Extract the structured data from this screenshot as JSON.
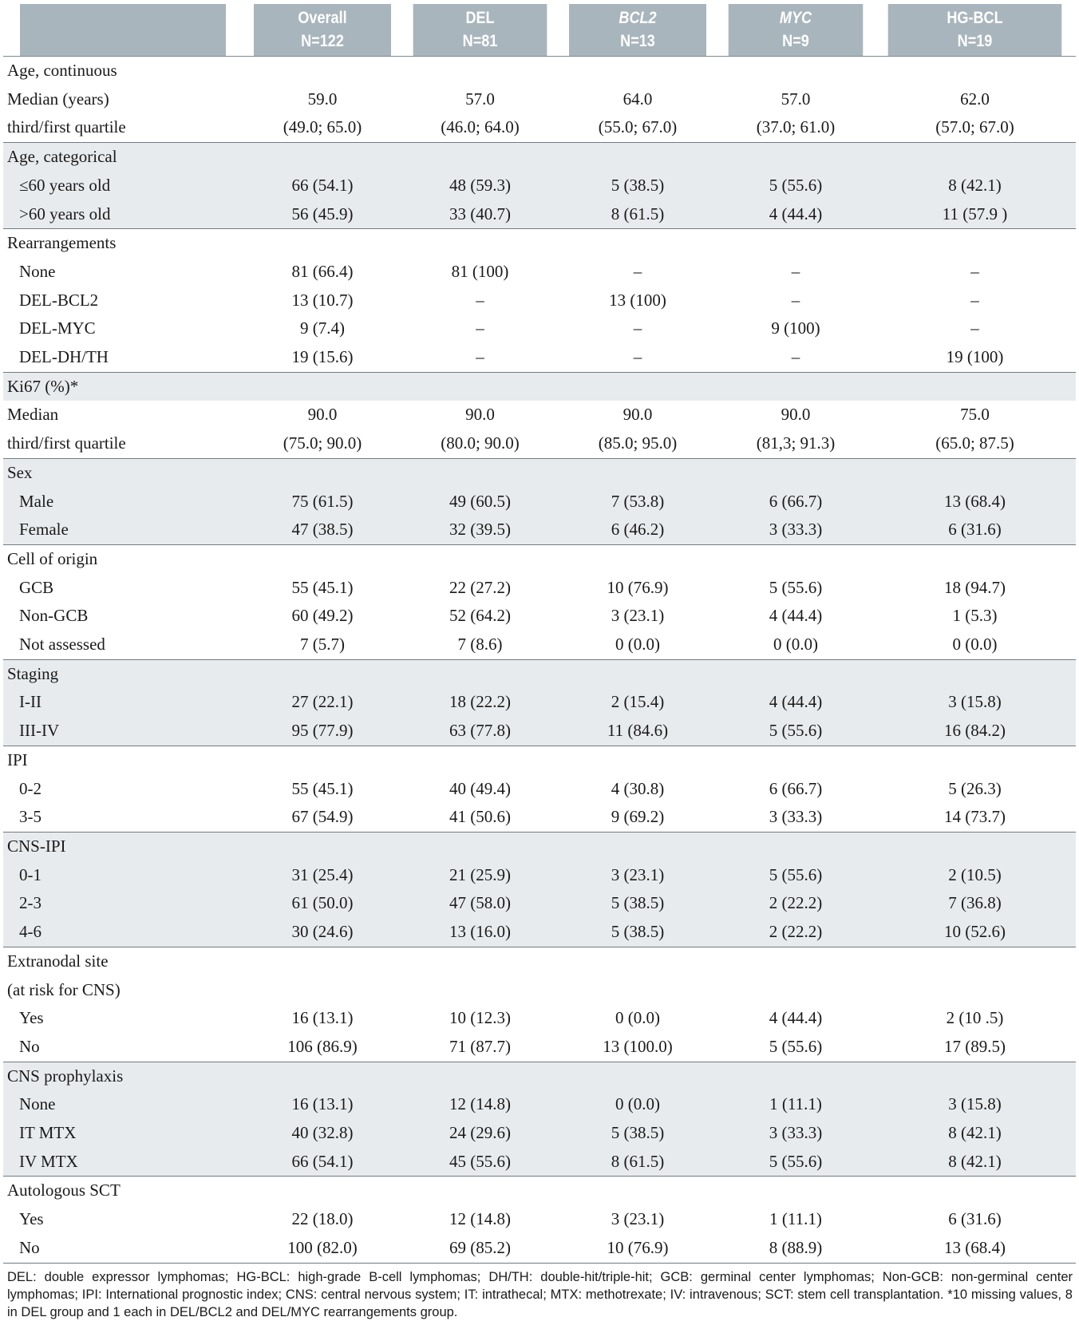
{
  "header": {
    "columns": [
      {
        "name": "Overall",
        "n": "N=122",
        "italic": false
      },
      {
        "name": "DEL",
        "n": "N=81",
        "italic": false
      },
      {
        "name": "BCL2",
        "n": "N=13",
        "italic": true
      },
      {
        "name": "MYC",
        "n": "N=9",
        "italic": true
      },
      {
        "name": "HG-BCL",
        "n": "N=19",
        "italic": false
      }
    ]
  },
  "groups": [
    {
      "shaded": false,
      "rows": [
        {
          "label": "Age, continuous",
          "indent": false,
          "values": [
            "",
            "",
            "",
            "",
            ""
          ]
        },
        {
          "label": "Median (years)",
          "indent": false,
          "values": [
            "59.0",
            "57.0",
            "64.0",
            "57.0",
            "62.0"
          ]
        },
        {
          "label": "third/first quartile",
          "indent": false,
          "values": [
            "(49.0; 65.0)",
            "(46.0; 64.0)",
            "(55.0; 67.0)",
            "(37.0; 61.0)",
            "(57.0; 67.0)"
          ]
        }
      ]
    },
    {
      "shaded": true,
      "rows": [
        {
          "label": "Age, categorical",
          "indent": false,
          "values": [
            "",
            "",
            "",
            "",
            ""
          ]
        },
        {
          "label": "≤60 years old",
          "indent": true,
          "values": [
            "66 (54.1)",
            "48 (59.3)",
            "5 (38.5)",
            "5 (55.6)",
            "8 (42.1)"
          ]
        },
        {
          "label": ">60 years old",
          "indent": true,
          "values": [
            "56 (45.9)",
            "33 (40.7)",
            "8 (61.5)",
            "4 (44.4)",
            "11 (57.9 )"
          ]
        }
      ]
    },
    {
      "shaded": false,
      "rows": [
        {
          "label": "Rearrangements",
          "indent": false,
          "values": [
            "",
            "",
            "",
            "",
            ""
          ]
        },
        {
          "label": "None",
          "indent": true,
          "values": [
            "81 (66.4)",
            "81 (100)",
            "–",
            "–",
            "–"
          ]
        },
        {
          "label": "DEL-BCL2",
          "indent": true,
          "values": [
            "13 (10.7)",
            "–",
            "13 (100)",
            "–",
            "–"
          ]
        },
        {
          "label": "DEL-MYC",
          "indent": true,
          "values": [
            "9 (7.4)",
            "–",
            "–",
            "9 (100)",
            "–"
          ]
        },
        {
          "label": "DEL-DH/TH",
          "indent": true,
          "values": [
            "19 (15.6)",
            "–",
            "–",
            "–",
            "19 (100)"
          ]
        }
      ]
    },
    {
      "shaded": true,
      "rows": [
        {
          "label": "Ki67 (%)*",
          "indent": false,
          "values": [
            "",
            "",
            "",
            "",
            ""
          ]
        }
      ]
    },
    {
      "shaded": false,
      "noTopBorder": true,
      "rows": [
        {
          "label": "Median",
          "indent": false,
          "values": [
            "90.0",
            "90.0",
            "90.0",
            "90.0",
            "75.0"
          ]
        },
        {
          "label": "third/first quartile",
          "indent": false,
          "values": [
            "(75.0; 90.0)",
            "(80.0; 90.0)",
            "(85.0; 95.0)",
            "(81,3; 91.3)",
            "(65.0; 87.5)"
          ]
        }
      ]
    },
    {
      "shaded": true,
      "rows": [
        {
          "label": "Sex",
          "indent": false,
          "values": [
            "",
            "",
            "",
            "",
            ""
          ]
        },
        {
          "label": "Male",
          "indent": true,
          "values": [
            "75 (61.5)",
            "49 (60.5)",
            "7 (53.8)",
            "6 (66.7)",
            "13 (68.4)"
          ]
        },
        {
          "label": "Female",
          "indent": true,
          "values": [
            "47 (38.5)",
            "32 (39.5)",
            "6 (46.2)",
            "3 (33.3)",
            "6 (31.6)"
          ]
        }
      ]
    },
    {
      "shaded": false,
      "rows": [
        {
          "label": "Cell of origin",
          "indent": false,
          "values": [
            "",
            "",
            "",
            "",
            ""
          ]
        },
        {
          "label": "GCB",
          "indent": true,
          "values": [
            "55 (45.1)",
            "22 (27.2)",
            "10 (76.9)",
            "5 (55.6)",
            "18 (94.7)"
          ]
        },
        {
          "label": "Non-GCB",
          "indent": true,
          "values": [
            "60 (49.2)",
            "52 (64.2)",
            "3 (23.1)",
            "4 (44.4)",
            "1 (5.3)"
          ]
        },
        {
          "label": "Not assessed",
          "indent": true,
          "values": [
            "7 (5.7)",
            "7 (8.6)",
            "0 (0.0)",
            "0 (0.0)",
            "0 (0.0)"
          ]
        }
      ]
    },
    {
      "shaded": true,
      "rows": [
        {
          "label": "Staging",
          "indent": false,
          "values": [
            "",
            "",
            "",
            "",
            ""
          ]
        },
        {
          "label": "I-II",
          "indent": true,
          "values": [
            "27 (22.1)",
            "18 (22.2)",
            "2 (15.4)",
            "4 (44.4)",
            "3 (15.8)"
          ]
        },
        {
          "label": "III-IV",
          "indent": true,
          "values": [
            "95 (77.9)",
            "63 (77.8)",
            "11 (84.6)",
            "5 (55.6)",
            "16 (84.2)"
          ]
        }
      ]
    },
    {
      "shaded": false,
      "rows": [
        {
          "label": "IPI",
          "indent": false,
          "values": [
            "",
            "",
            "",
            "",
            ""
          ]
        },
        {
          "label": "0-2",
          "indent": true,
          "values": [
            "55 (45.1)",
            "40 (49.4)",
            "4 (30.8)",
            "6 (66.7)",
            "5 (26.3)"
          ]
        },
        {
          "label": "3-5",
          "indent": true,
          "values": [
            "67 (54.9)",
            "41 (50.6)",
            "9 (69.2)",
            "3 (33.3)",
            "14 (73.7)"
          ]
        }
      ]
    },
    {
      "shaded": true,
      "rows": [
        {
          "label": "CNS-IPI",
          "indent": false,
          "values": [
            "",
            "",
            "",
            "",
            ""
          ]
        },
        {
          "label": "0-1",
          "indent": true,
          "values": [
            "31 (25.4)",
            "21 (25.9)",
            "3 (23.1)",
            "5 (55.6)",
            "2 (10.5)"
          ]
        },
        {
          "label": "2-3",
          "indent": true,
          "values": [
            "61 (50.0)",
            "47 (58.0)",
            "5 (38.5)",
            "2 (22.2)",
            "7 (36.8)"
          ]
        },
        {
          "label": "4-6",
          "indent": true,
          "values": [
            "30 (24.6)",
            "13 (16.0)",
            "5 (38.5)",
            "2 (22.2)",
            "10 (52.6)"
          ]
        }
      ]
    },
    {
      "shaded": false,
      "rows": [
        {
          "label": "Extranodal site",
          "indent": false,
          "values": [
            "",
            "",
            "",
            "",
            ""
          ]
        },
        {
          "label": "(at risk for CNS)",
          "indent": false,
          "values": [
            "",
            "",
            "",
            "",
            ""
          ]
        },
        {
          "label": "Yes",
          "indent": true,
          "values": [
            "16 (13.1)",
            "10 (12.3)",
            "0 (0.0)",
            "4 (44.4)",
            "2 (10 .5)"
          ]
        },
        {
          "label": "No",
          "indent": true,
          "values": [
            "106 (86.9)",
            "71 (87.7)",
            "13 (100.0)",
            "5 (55.6)",
            "17 (89.5)"
          ]
        }
      ]
    },
    {
      "shaded": true,
      "rows": [
        {
          "label": "CNS prophylaxis",
          "indent": false,
          "values": [
            "",
            "",
            "",
            "",
            ""
          ]
        },
        {
          "label": "None",
          "indent": true,
          "values": [
            "16 (13.1)",
            "12 (14.8)",
            "0 (0.0)",
            "1 (11.1)",
            "3 (15.8)"
          ]
        },
        {
          "label": "IT MTX",
          "indent": true,
          "values": [
            "40 (32.8)",
            "24 (29.6)",
            "5 (38.5)",
            "3 (33.3)",
            "8 (42.1)"
          ]
        },
        {
          "label": "IV MTX",
          "indent": true,
          "values": [
            "66 (54.1)",
            "45 (55.6)",
            "8 (61.5)",
            "5 (55.6)",
            "8 (42.1)"
          ]
        }
      ]
    },
    {
      "shaded": false,
      "rows": [
        {
          "label": "Autologous SCT",
          "indent": false,
          "values": [
            "",
            "",
            "",
            "",
            ""
          ]
        },
        {
          "label": "Yes",
          "indent": true,
          "values": [
            "22 (18.0)",
            "12 (14.8)",
            "3 (23.1)",
            "1 (11.1)",
            "6 (31.6)"
          ]
        },
        {
          "label": "No",
          "indent": true,
          "values": [
            "100 (82.0)",
            "69 (85.2)",
            "10 (76.9)",
            "8 (88.9)",
            "13 (68.4)"
          ]
        }
      ]
    }
  ],
  "footnote": "DEL: double expressor lymphomas; HG-BCL: high-grade B-cell lymphomas; DH/TH: double-hit/triple-hit; GCB: germinal center lymphomas; Non-GCB: non-germinal center lymphomas; IPI: International prognostic index; CNS: central nervous system; IT: intrathecal; MTX: methotrexate; IV: intravenous; SCT: stem cell transplantation. *10 missing values, 8 in DEL group and 1 each in DEL/BCL2 and DEL/MYC rearrangements group.",
  "colors": {
    "header_bg": "#a9b5bc",
    "shade_bg": "#e8ebee",
    "rule": "#6f7b82"
  }
}
